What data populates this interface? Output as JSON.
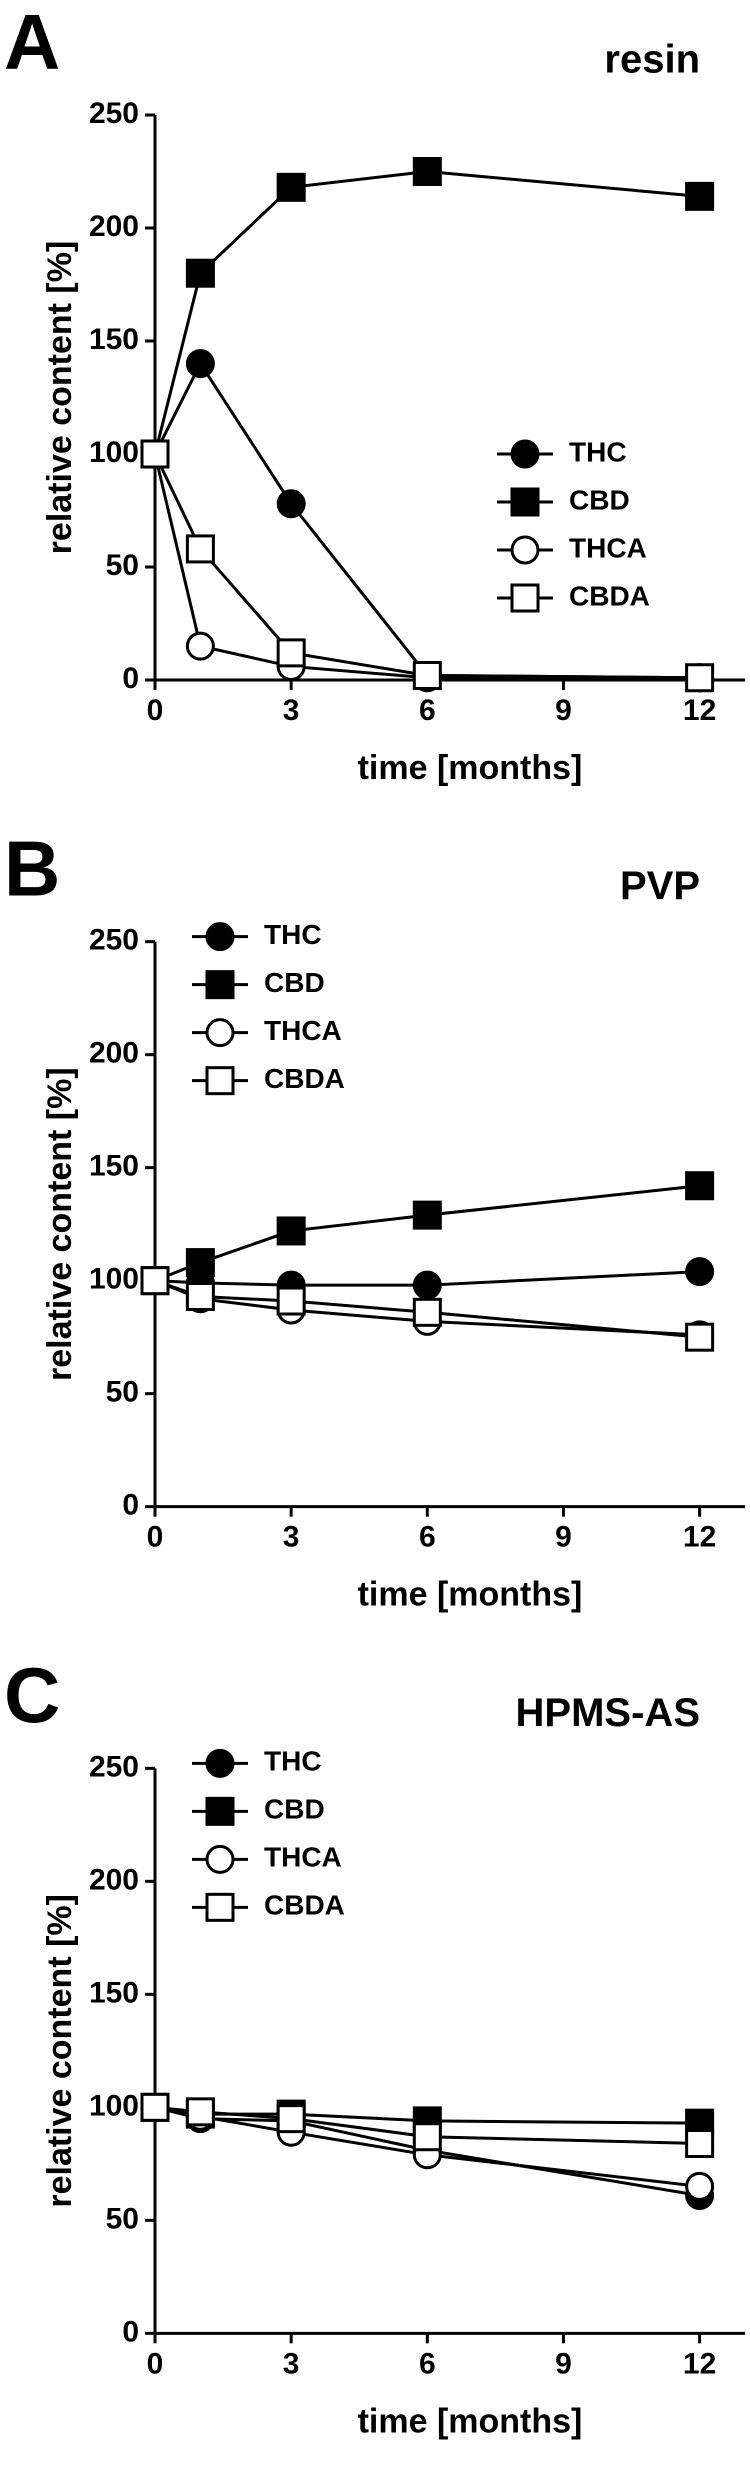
{
  "chart_data": [
    {
      "type": "line",
      "panel": "A",
      "title": "resin",
      "xlabel": "time [months]",
      "ylabel": "relative content [%]",
      "x": [
        0,
        1,
        3,
        6,
        12
      ],
      "xlim": [
        0,
        13
      ],
      "xticks": [
        0,
        3,
        6,
        9,
        12
      ],
      "ylim": [
        0,
        250
      ],
      "yticks": [
        0,
        50,
        100,
        150,
        200,
        250
      ],
      "legend": "center right",
      "series": [
        {
          "name": "THC",
          "color": "#000000",
          "marker": "circle",
          "filled": true,
          "values": [
            100,
            140,
            78,
            2,
            1
          ]
        },
        {
          "name": "CBD",
          "color": "#000000",
          "marker": "square",
          "filled": true,
          "values": [
            100,
            180,
            218,
            225,
            214
          ]
        },
        {
          "name": "THCA",
          "color": "#000000",
          "marker": "circle",
          "filled": false,
          "values": [
            100,
            15,
            6,
            1,
            1
          ]
        },
        {
          "name": "CBDA",
          "color": "#000000",
          "marker": "square",
          "filled": false,
          "values": [
            100,
            58,
            12,
            2,
            1
          ]
        }
      ]
    },
    {
      "type": "line",
      "panel": "B",
      "title": "PVP",
      "xlabel": "time [months]",
      "ylabel": "relative content [%]",
      "x": [
        0,
        1,
        3,
        6,
        12
      ],
      "xlim": [
        0,
        13
      ],
      "xticks": [
        0,
        3,
        6,
        9,
        12
      ],
      "ylim": [
        0,
        250
      ],
      "yticks": [
        0,
        50,
        100,
        150,
        200,
        250
      ],
      "legend": "upper left",
      "series": [
        {
          "name": "THC",
          "color": "#000000",
          "marker": "circle",
          "filled": true,
          "values": [
            100,
            99,
            98,
            98,
            104
          ]
        },
        {
          "name": "CBD",
          "color": "#000000",
          "marker": "square",
          "filled": true,
          "values": [
            100,
            108,
            122,
            129,
            142
          ]
        },
        {
          "name": "THCA",
          "color": "#000000",
          "marker": "circle",
          "filled": false,
          "values": [
            100,
            92,
            87,
            82,
            76
          ]
        },
        {
          "name": "CBDA",
          "color": "#000000",
          "marker": "square",
          "filled": false,
          "values": [
            100,
            93,
            91,
            86,
            75
          ]
        }
      ]
    },
    {
      "type": "line",
      "panel": "C",
      "title": "HPMS-AS",
      "xlabel": "time [months]",
      "ylabel": "relative content [%]",
      "x": [
        0,
        1,
        3,
        6,
        12
      ],
      "xlim": [
        0,
        13
      ],
      "xticks": [
        0,
        3,
        6,
        9,
        12
      ],
      "ylim": [
        0,
        250
      ],
      "yticks": [
        0,
        50,
        100,
        150,
        200,
        250
      ],
      "legend": "upper left",
      "series": [
        {
          "name": "THC",
          "color": "#000000",
          "marker": "circle",
          "filled": true,
          "values": [
            100,
            95,
            94,
            81,
            61
          ]
        },
        {
          "name": "CBD",
          "color": "#000000",
          "marker": "square",
          "filled": true,
          "values": [
            100,
            97,
            97,
            94,
            93
          ]
        },
        {
          "name": "THCA",
          "color": "#000000",
          "marker": "circle",
          "filled": false,
          "values": [
            100,
            96,
            89,
            79,
            65
          ]
        },
        {
          "name": "CBDA",
          "color": "#000000",
          "marker": "square",
          "filled": false,
          "values": [
            100,
            98,
            95,
            87,
            84
          ]
        }
      ]
    }
  ]
}
